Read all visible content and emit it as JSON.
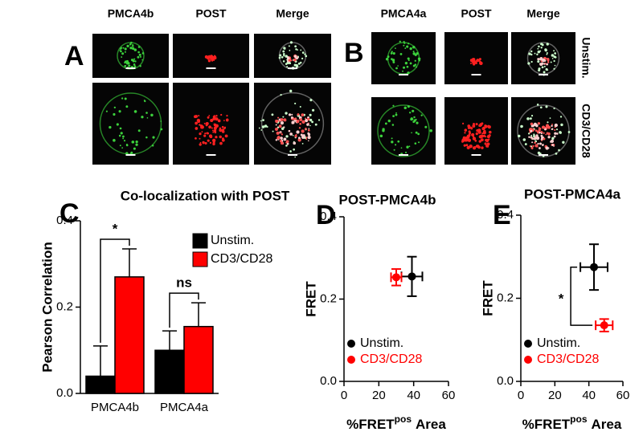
{
  "figure": {
    "panels": [
      {
        "label": "A",
        "columns": [
          "PMCA4b",
          "POST",
          "Merge"
        ]
      },
      {
        "label": "B",
        "columns": [
          "PMCA4a",
          "POST",
          "Merge"
        ],
        "rows": [
          "Unstim.",
          "CD3/CD28"
        ]
      }
    ]
  },
  "chart_data": [
    {
      "type": "bar",
      "panel": "C",
      "title": "Co-localization with POST",
      "y_label": "Pearson Correlation",
      "categories": [
        "PMCA4b",
        "PMCA4a"
      ],
      "series": [
        {
          "name": "Unstim.",
          "color": "#000000",
          "values": [
            0.04,
            0.1
          ],
          "errors": [
            0.07,
            0.045
          ]
        },
        {
          "name": "CD3/CD28",
          "color": "#ff0000",
          "values": [
            0.27,
            0.155
          ],
          "errors": [
            0.065,
            0.055
          ]
        }
      ],
      "ylim": [
        0,
        0.4
      ],
      "yticks": [
        {
          "value": 0,
          "label": "0.0"
        },
        {
          "value": 0.2,
          "label": "0.2"
        },
        {
          "value": 0.4,
          "label": "0.4"
        }
      ],
      "annotations": [
        "*",
        "ns"
      ]
    },
    {
      "type": "scatter",
      "panel": "D",
      "title": "POST-PMCA4b",
      "y_label": "FRET",
      "x_label": {
        "text": "%FRET",
        "superscript": "pos",
        "suffix": "Area"
      },
      "series": [
        {
          "name": "Unstim.",
          "color": "#000000",
          "x": [
            39
          ],
          "values": [
            0.255
          ],
          "xerr": [
            6
          ],
          "yerr": [
            0.048
          ]
        },
        {
          "name": "CD3/CD28",
          "color": "#ff0000",
          "x": [
            30
          ],
          "values": [
            0.253
          ],
          "xerr": [
            3
          ],
          "yerr": [
            0.02
          ]
        }
      ],
      "xlim": [
        0,
        60
      ],
      "xticks": [
        0,
        20,
        40,
        60
      ],
      "ylim": [
        0,
        0.4
      ],
      "yticks": [
        {
          "value": 0,
          "label": "0.0"
        },
        {
          "value": 0.2,
          "label": "0.2"
        },
        {
          "value": 0.4,
          "label": "0.4"
        }
      ]
    },
    {
      "type": "scatter",
      "panel": "E",
      "title": "POST-PMCA4a",
      "y_label": "FRET",
      "x_label": {
        "text": "%FRET",
        "superscript": "pos",
        "suffix": "Area"
      },
      "series": [
        {
          "name": "Unstim.",
          "color": "#000000",
          "x": [
            43
          ],
          "values": [
            0.275
          ],
          "xerr": [
            8
          ],
          "yerr": [
            0.055
          ]
        },
        {
          "name": "CD3/CD28",
          "color": "#ff0000",
          "x": [
            49
          ],
          "values": [
            0.135
          ],
          "xerr": [
            5
          ],
          "yerr": [
            0.015
          ]
        }
      ],
      "xlim": [
        0,
        60
      ],
      "xticks": [
        0,
        20,
        40,
        60
      ],
      "ylim": [
        0,
        0.4
      ],
      "yticks": [
        {
          "value": 0,
          "label": "0.0"
        },
        {
          "value": 0.2,
          "label": "0.2"
        },
        {
          "value": 0.4,
          "label": "0.4"
        }
      ],
      "annotations": [
        "*"
      ]
    }
  ]
}
